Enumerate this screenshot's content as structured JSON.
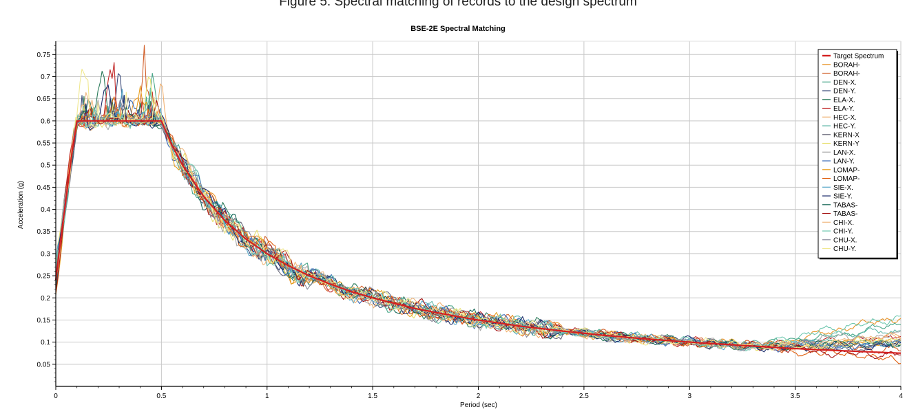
{
  "caption": "Figure 5: Spectral matching of records to the design spectrum",
  "chart_data": {
    "type": "line",
    "title": "BSE-2E Spectral Matching",
    "xlabel": "Period (sec)",
    "ylabel": "Acceleration (g)",
    "xlim": [
      0,
      4
    ],
    "ylim": [
      0,
      0.78
    ],
    "xticks": [
      0,
      0.5,
      1,
      1.5,
      2,
      2.5,
      3,
      3.5,
      4
    ],
    "xtick_labels": [
      "0",
      "0.5",
      "1",
      "1.5",
      "2",
      "2.5",
      "3",
      "3.5",
      "4"
    ],
    "yticks": [
      0.05,
      0.1,
      0.15,
      0.2,
      0.25,
      0.3,
      0.35,
      0.4,
      0.45,
      0.5,
      0.55,
      0.6,
      0.65,
      0.7,
      0.75
    ],
    "ytick_labels": [
      "0.05",
      "0.1",
      "0.15",
      "0.2",
      "0.25",
      "0.3",
      "0.35",
      "0.4",
      "0.45",
      "0.5",
      "0.55",
      "0.6",
      "0.65",
      "0.7",
      "0.75"
    ],
    "grid": true,
    "legend_position": "top-right",
    "target": {
      "name": "Target Spectrum",
      "color": "#d42020",
      "x": [
        0,
        0.02,
        0.05,
        0.08,
        0.1,
        0.15,
        0.2,
        0.3,
        0.4,
        0.5,
        0.55,
        0.6,
        0.7,
        0.8,
        0.9,
        1.0,
        1.1,
        1.2,
        1.3,
        1.4,
        1.5,
        1.6,
        1.7,
        1.8,
        1.9,
        2.0,
        2.2,
        2.4,
        2.6,
        2.8,
        3.0,
        3.2,
        3.4,
        3.6,
        3.8,
        4.0
      ],
      "y": [
        0.24,
        0.32,
        0.43,
        0.54,
        0.6,
        0.6,
        0.6,
        0.6,
        0.6,
        0.6,
        0.545,
        0.5,
        0.429,
        0.375,
        0.333,
        0.3,
        0.273,
        0.25,
        0.231,
        0.214,
        0.2,
        0.188,
        0.176,
        0.167,
        0.158,
        0.15,
        0.136,
        0.125,
        0.115,
        0.107,
        0.1,
        0.094,
        0.088,
        0.083,
        0.079,
        0.075
      ]
    },
    "series": [
      {
        "name": "BORAH-",
        "color": "#e8952a",
        "peak_x": 0.38,
        "peak_y": 0.7,
        "tail_end": 0.155
      },
      {
        "name": "BORAH-",
        "color": "#d2602a",
        "peak_x": 0.42,
        "peak_y": 0.745,
        "tail_end": 0.085
      },
      {
        "name": "DEN-X.",
        "color": "#4aa88a",
        "peak_x": 0.46,
        "peak_y": 0.72,
        "tail_end": 0.14
      },
      {
        "name": "DEN-Y.",
        "color": "#3a4a7a",
        "peak_x": 0.3,
        "peak_y": 0.735,
        "tail_end": 0.095
      },
      {
        "name": "ELA-X.",
        "color": "#2a7a5a",
        "peak_x": 0.22,
        "peak_y": 0.76,
        "tail_end": 0.1
      },
      {
        "name": "ELA-Y.",
        "color": "#c22a2a",
        "peak_x": 0.26,
        "peak_y": 0.78,
        "tail_end": 0.115
      },
      {
        "name": "HEC-X.",
        "color": "#f0b070",
        "peak_x": 0.5,
        "peak_y": 0.69,
        "tail_end": 0.11
      },
      {
        "name": "HEC-Y.",
        "color": "#60b8a8",
        "peak_x": 0.18,
        "peak_y": 0.66,
        "tail_end": 0.13
      },
      {
        "name": "KERN-X",
        "color": "#6a6a7a",
        "peak_x": 0.34,
        "peak_y": 0.67,
        "tail_end": 0.09
      },
      {
        "name": "KERN-Y",
        "color": "#e8e070",
        "peak_x": 0.44,
        "peak_y": 0.715,
        "tail_end": 0.105
      },
      {
        "name": "LAN-X.",
        "color": "#a8a8a8",
        "peak_x": 0.2,
        "peak_y": 0.65,
        "tail_end": 0.12
      },
      {
        "name": "LAN-Y.",
        "color": "#3a6ab8",
        "peak_x": 0.36,
        "peak_y": 0.66,
        "tail_end": 0.095
      },
      {
        "name": "LOMAP-",
        "color": "#e8a020",
        "peak_x": 0.4,
        "peak_y": 0.68,
        "tail_end": 0.1
      },
      {
        "name": "LOMAP-",
        "color": "#e06010",
        "peak_x": 0.28,
        "peak_y": 0.67,
        "tail_end": 0.06
      },
      {
        "name": "SIE-X.",
        "color": "#58a8c8",
        "peak_x": 0.32,
        "peak_y": 0.665,
        "tail_end": 0.1
      },
      {
        "name": "SIE-Y.",
        "color": "#1a2a6a",
        "peak_x": 0.24,
        "peak_y": 0.74,
        "tail_end": 0.09
      },
      {
        "name": "TABAS-",
        "color": "#1a6a5a",
        "peak_x": 0.16,
        "peak_y": 0.65,
        "tail_end": 0.1
      },
      {
        "name": "TABAS-",
        "color": "#a81a1a",
        "peak_x": 0.48,
        "peak_y": 0.645,
        "tail_end": 0.07
      },
      {
        "name": "CHI-X.",
        "color": "#f0b880",
        "peak_x": 0.14,
        "peak_y": 0.675,
        "tail_end": 0.11
      },
      {
        "name": "CHI-Y.",
        "color": "#70c8b0",
        "peak_x": 0.45,
        "peak_y": 0.665,
        "tail_end": 0.16
      },
      {
        "name": "CHU-X.",
        "color": "#888898",
        "peak_x": 0.3,
        "peak_y": 0.66,
        "tail_end": 0.1
      },
      {
        "name": "CHU-Y.",
        "color": "#f0e890",
        "peak_x": 0.13,
        "peak_y": 0.77,
        "tail_end": 0.1
      }
    ]
  }
}
